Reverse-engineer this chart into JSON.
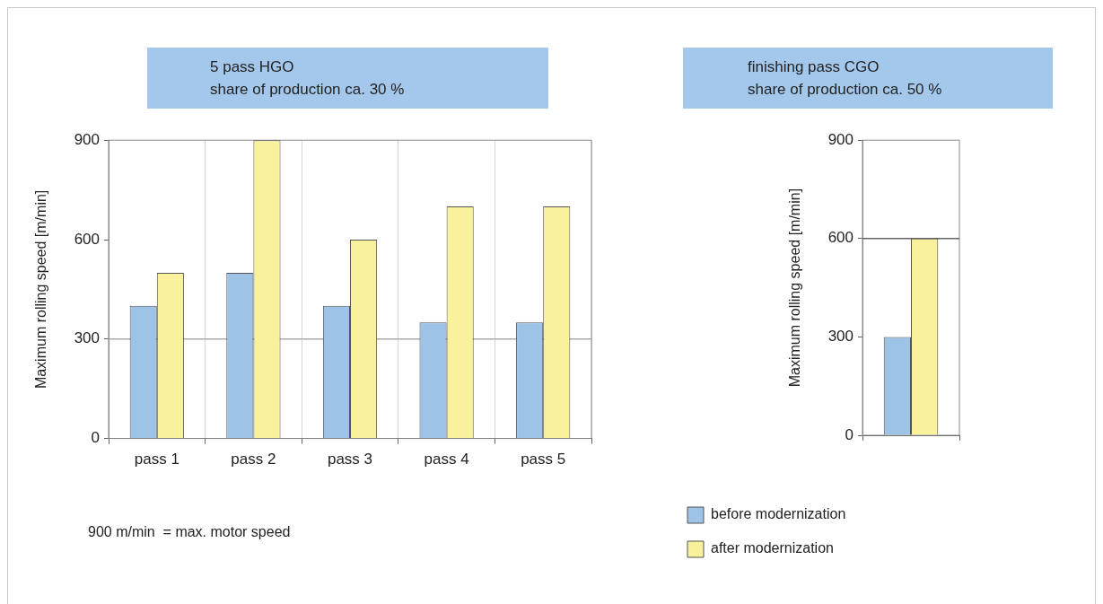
{
  "chart_data": [
    {
      "type": "bar",
      "title": "5 pass HGO",
      "subtitle": "share of production ca. 30 %",
      "ylabel": "Maximum rolling speed [m/min]",
      "categories": [
        "pass 1",
        "pass 2",
        "pass 3",
        "pass 4",
        "pass 5"
      ],
      "series": [
        {
          "color": "#9dc3e6",
          "values": [
            400,
            500,
            400,
            350,
            350
          ]
        },
        {
          "color": "#f9f19b",
          "values": [
            500,
            900,
            600,
            700,
            700
          ]
        }
      ],
      "ylim": [
        0,
        900
      ],
      "yticks": [
        0,
        300,
        600,
        900
      ],
      "grid": "x",
      "ref_lines": [
        {
          "axis": "y",
          "value": 300,
          "color": "#aaaaaa"
        }
      ],
      "annotations": [
        "900 m/min  = max. motor speed"
      ]
    },
    {
      "type": "bar",
      "title": "finishing pass CGO",
      "subtitle": "share of production ca. 50 %",
      "ylabel": "Maximum rolling speed [m/min]",
      "categories": [
        null
      ],
      "series": [
        {
          "name": "before modernization",
          "color": "#9dc3e6",
          "values": [
            300
          ]
        },
        {
          "name": "after modernization",
          "color": "#f9f19b",
          "values": [
            600
          ]
        }
      ],
      "ylim": [
        0,
        900
      ],
      "yticks": [
        0,
        300,
        600,
        900
      ],
      "ref_lines": [
        {
          "axis": "y",
          "value": 600,
          "color": "#666666"
        }
      ],
      "legend": "bottom left"
    }
  ]
}
